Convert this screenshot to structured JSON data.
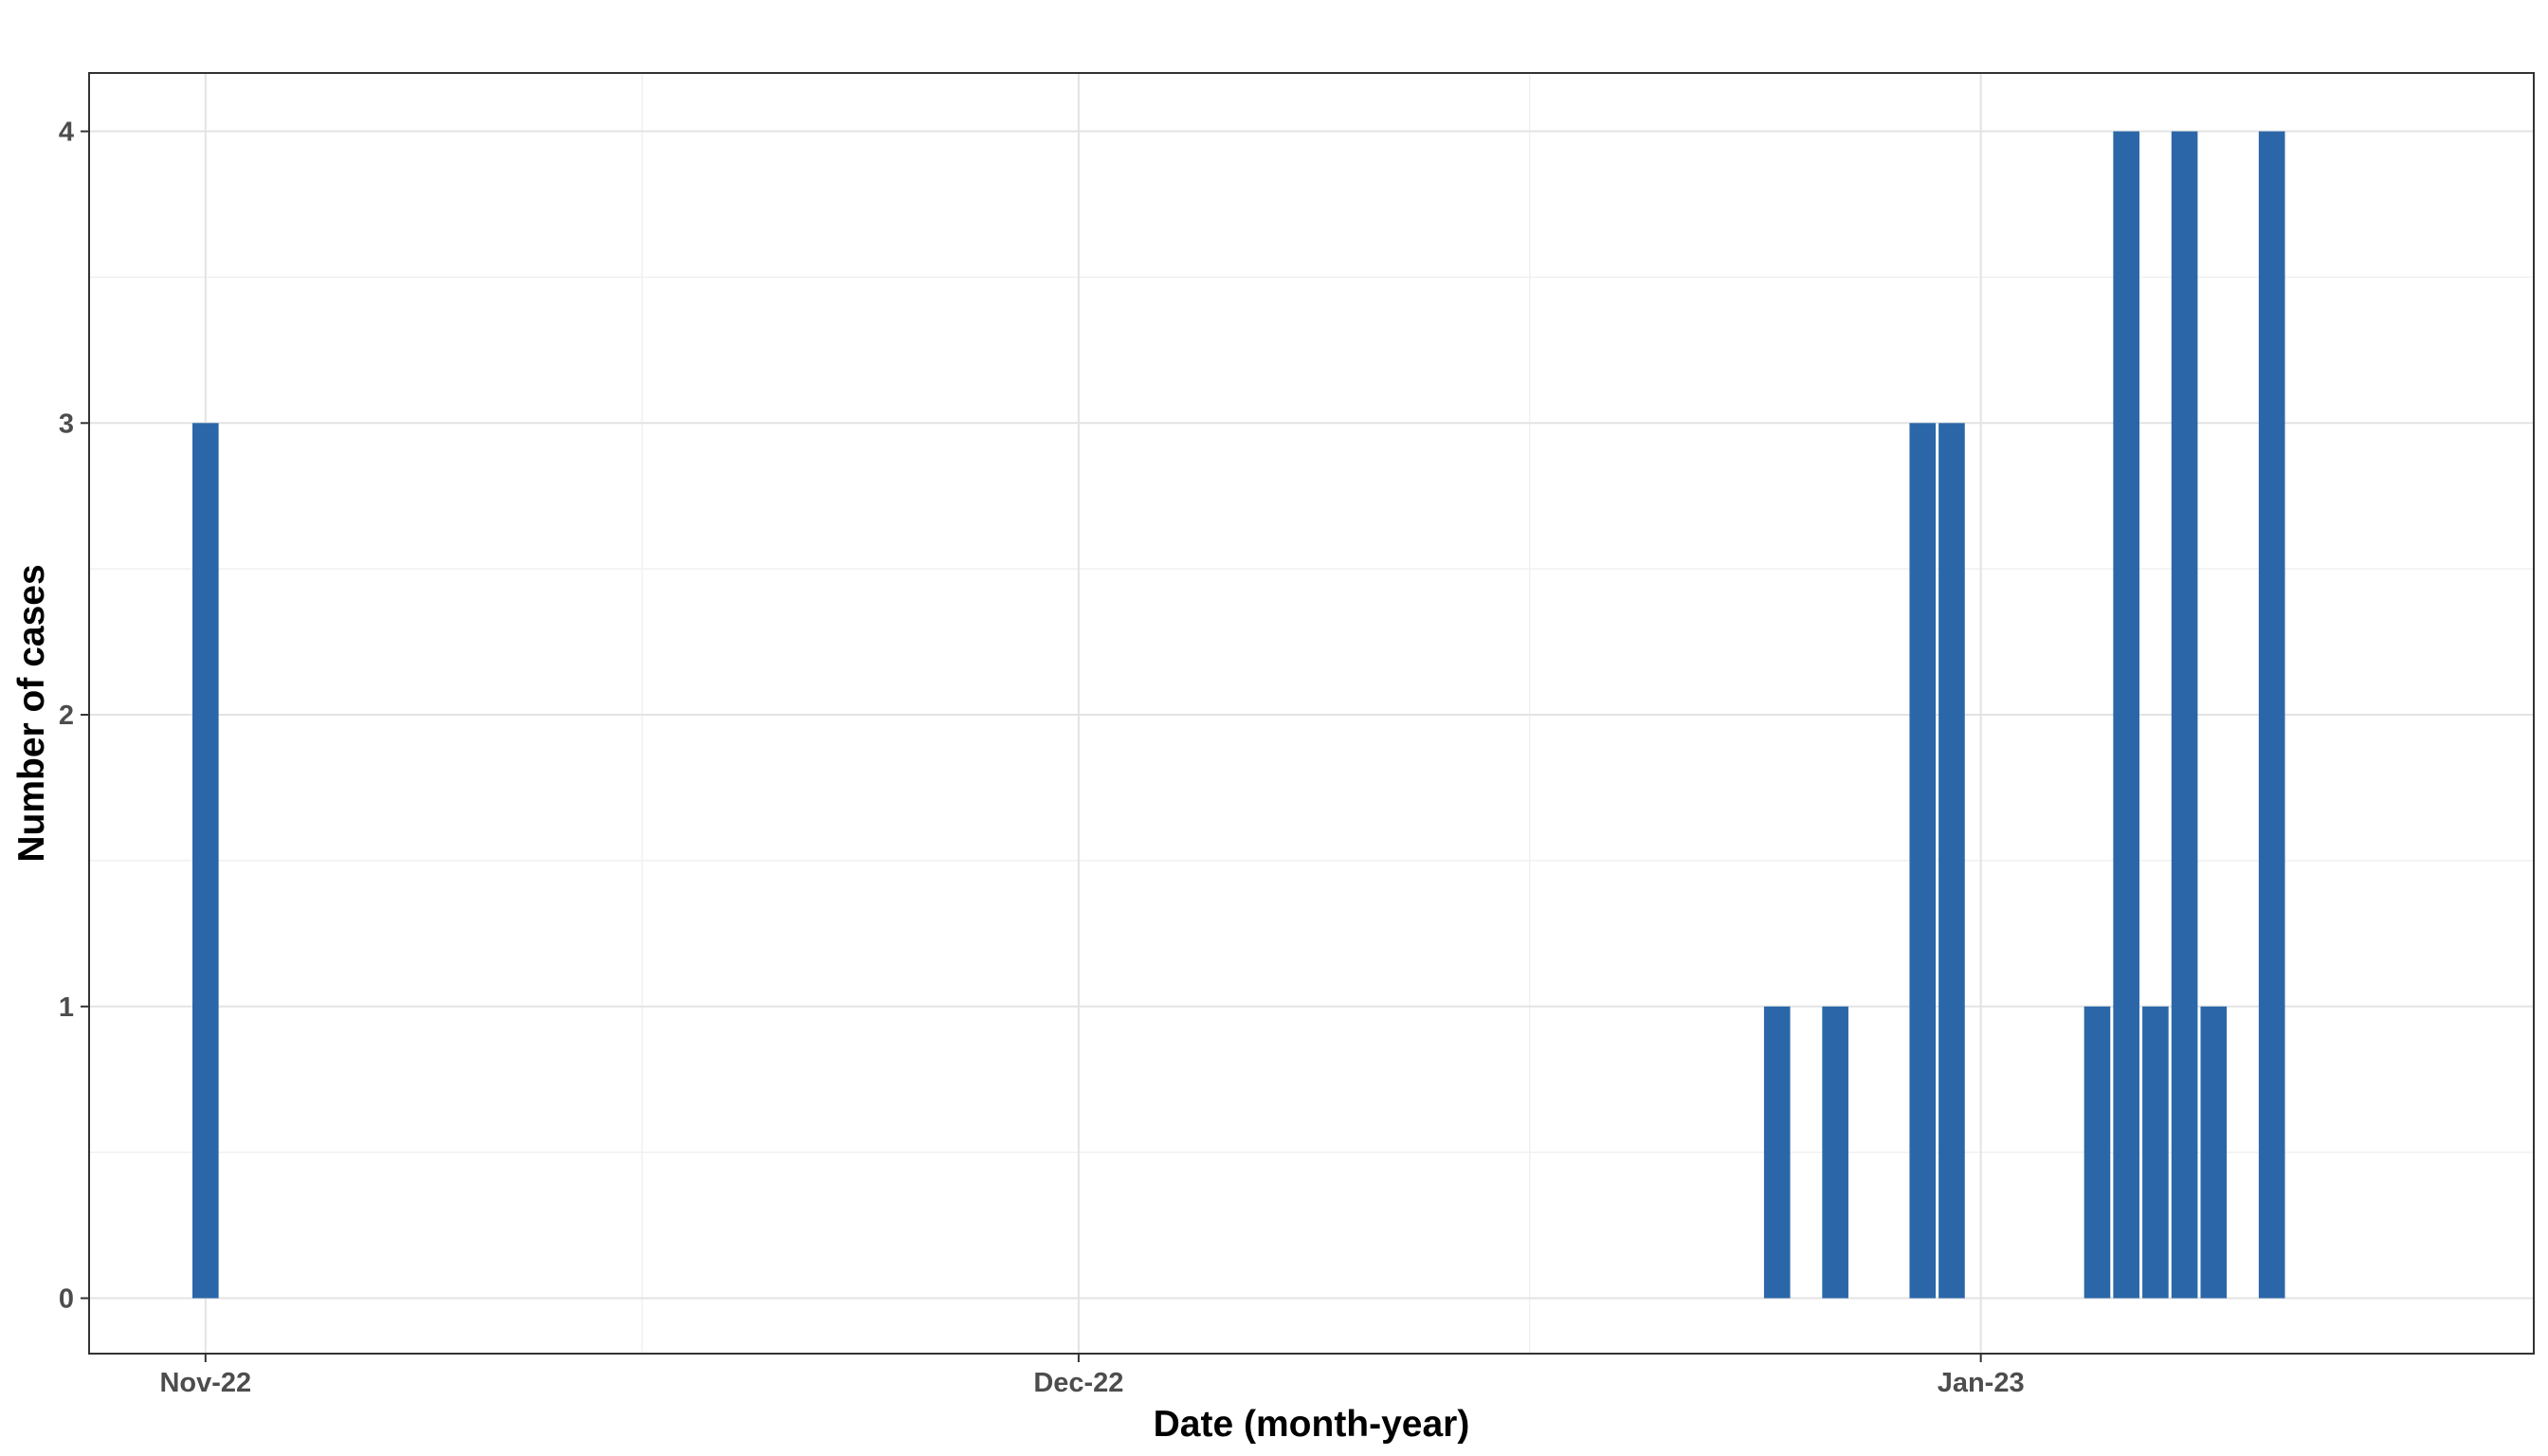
{
  "chart_data": {
    "type": "bar",
    "xlabel": "Date (month-year)",
    "ylabel": "Number of cases",
    "x_axis_kind": "date",
    "xlim": [
      "2022-10-28",
      "2023-01-20"
    ],
    "ylim": [
      -0.19,
      4.2
    ],
    "y_ticks": [
      0,
      1,
      2,
      3,
      4
    ],
    "x_ticks": [
      {
        "date": "2022-11-01",
        "label": "Nov-22"
      },
      {
        "date": "2022-12-01",
        "label": "Dec-22"
      },
      {
        "date": "2023-01-01",
        "label": "Jan-23"
      }
    ],
    "grid": true,
    "bar_color": "#2b67a8",
    "bars": [
      {
        "date": "2022-11-01",
        "value": 3
      },
      {
        "date": "2022-12-25",
        "value": 1
      },
      {
        "date": "2022-12-27",
        "value": 1
      },
      {
        "date": "2022-12-30",
        "value": 3
      },
      {
        "date": "2022-12-31",
        "value": 3
      },
      {
        "date": "2023-01-05",
        "value": 1
      },
      {
        "date": "2023-01-06",
        "value": 4
      },
      {
        "date": "2023-01-07",
        "value": 1
      },
      {
        "date": "2023-01-08",
        "value": 4
      },
      {
        "date": "2023-01-09",
        "value": 1
      },
      {
        "date": "2023-01-11",
        "value": 4
      }
    ]
  }
}
